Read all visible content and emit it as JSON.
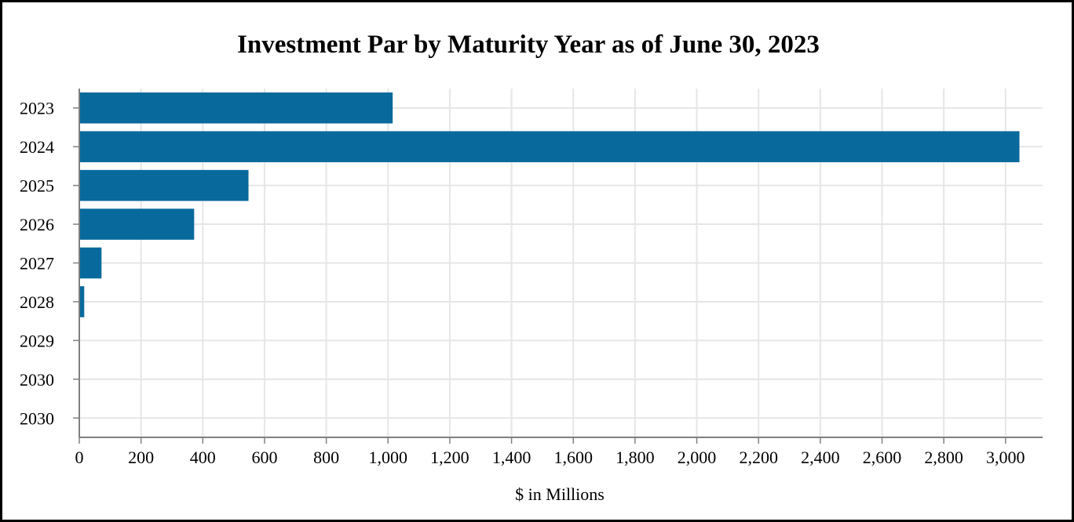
{
  "chart_data": {
    "type": "bar",
    "orientation": "horizontal",
    "title": "Investment Par by Maturity Year as of June 30, 2023",
    "xlabel": "$ in Millions",
    "ylabel": "",
    "categories": [
      "2023",
      "2024",
      "2025",
      "2026",
      "2027",
      "2028",
      "2029",
      "2030",
      "2030"
    ],
    "values": [
      1015,
      3045,
      548,
      372,
      72,
      16,
      0,
      0,
      0
    ],
    "xlim": [
      0,
      3120
    ],
    "x_ticks": [
      0,
      200,
      400,
      600,
      800,
      1000,
      1200,
      1400,
      1600,
      1800,
      2000,
      2200,
      2400,
      2600,
      2800,
      3000
    ],
    "x_tick_labels": [
      "0",
      "200",
      "400",
      "600",
      "800",
      "1,000",
      "1,200",
      "1,400",
      "1,600",
      "1,800",
      "2,000",
      "2,200",
      "2,400",
      "2,600",
      "2,800",
      "3,000"
    ],
    "grid": true,
    "legend": "none",
    "colors": {
      "bar": "#086A9C",
      "grid": "#E6E6E6",
      "axis": "#808080",
      "border": "#000000"
    }
  }
}
